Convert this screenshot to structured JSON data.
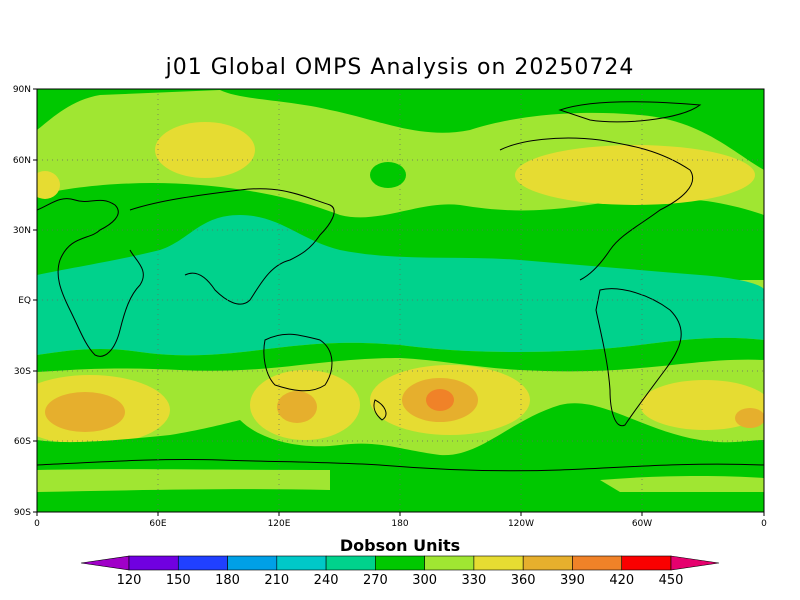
{
  "title": "j01 Global OMPS Analysis on 20250724",
  "map": {
    "lat_ticks": [
      "90N",
      "60N",
      "30N",
      "EQ",
      "30S",
      "60S",
      "90S"
    ],
    "lon_ticks": [
      "0",
      "60E",
      "120E",
      "180",
      "120W",
      "60W",
      "0"
    ],
    "gridlines": "dotted"
  },
  "colorbar": {
    "title": "Dobson Units",
    "labels": [
      "120",
      "150",
      "180",
      "210",
      "240",
      "270",
      "300",
      "330",
      "360",
      "390",
      "420",
      "450"
    ],
    "colors": [
      "#a000c8",
      "#7000e0",
      "#2040ff",
      "#00a0e6",
      "#00c8c8",
      "#00d28c",
      "#00c800",
      "#a0e632",
      "#e6dc32",
      "#e6af2d",
      "#f08228",
      "#fa0000",
      "#e6006e"
    ]
  }
}
